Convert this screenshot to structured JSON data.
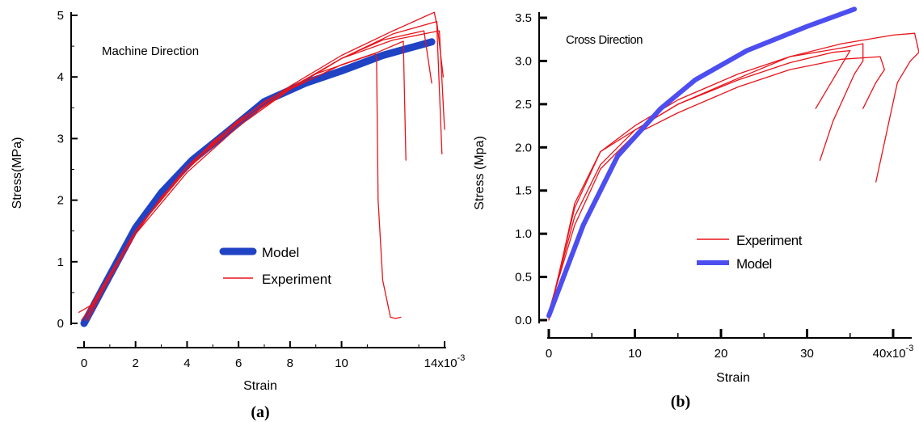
{
  "chart_data": [
    {
      "type": "line",
      "panel_label": "(a)",
      "annotation": "Machine Direction",
      "xlabel": "Strain",
      "ylabel": "Stress(MPa)",
      "xlim": [
        -0.3,
        14
      ],
      "ylim": [
        0,
        5
      ],
      "x_ticks": [
        0,
        2,
        4,
        6,
        8,
        10,
        14
      ],
      "x_tick_labels": [
        "0",
        "2",
        "4",
        "6",
        "8",
        "10",
        "14x10"
      ],
      "x_exponent": "-3",
      "y_ticks": [
        0,
        1,
        2,
        3,
        4,
        5
      ],
      "y_tick_labels": [
        "0",
        "1",
        "2",
        "3",
        "4",
        "5"
      ],
      "legend": [
        "Model",
        "Experiment"
      ],
      "colors": {
        "model": "#1f43c4",
        "experiment": "#e8141b"
      },
      "series": [
        {
          "name": "Model",
          "x": [
            0,
            1,
            2,
            3,
            4.2,
            5.6,
            7,
            8.6,
            10,
            11.6,
            13.5
          ],
          "y": [
            0,
            0.78,
            1.55,
            2.12,
            2.65,
            3.12,
            3.6,
            3.9,
            4.1,
            4.35,
            4.57
          ]
        },
        {
          "name": "Experiment",
          "x": [
            -0.2,
            0.3,
            1.5,
            3,
            5,
            7,
            9,
            10.6,
            11.3,
            11.36,
            11.42,
            11.6,
            11.9,
            12.1,
            12.3
          ],
          "y": [
            0.18,
            0.3,
            1.15,
            2.05,
            2.95,
            3.6,
            4.05,
            4.28,
            4.38,
            4.3,
            2.0,
            0.7,
            0.1,
            0.08,
            0.1
          ]
        },
        {
          "name": "Experiment",
          "x": [
            -0.1,
            0.4,
            2,
            4,
            6,
            8,
            10,
            11.4,
            12.4,
            12.5
          ],
          "y": [
            0.05,
            0.35,
            1.5,
            2.55,
            3.25,
            3.8,
            4.2,
            4.4,
            4.58,
            2.65
          ]
        },
        {
          "name": "Experiment",
          "x": [
            0,
            0.5,
            2,
            4,
            6,
            8,
            10,
            11.6,
            13.2,
            13.5
          ],
          "y": [
            0.1,
            0.45,
            1.5,
            2.55,
            3.25,
            3.82,
            4.3,
            4.6,
            4.75,
            3.9
          ]
        },
        {
          "name": "Experiment",
          "x": [
            0.05,
            0.6,
            2,
            4,
            6,
            8,
            10,
            12,
            13.6,
            13.7,
            13.9
          ],
          "y": [
            0.05,
            0.5,
            1.5,
            2.55,
            3.3,
            3.85,
            4.35,
            4.75,
            5.05,
            4.85,
            2.75
          ]
        },
        {
          "name": "Experiment",
          "x": [
            0.1,
            0.7,
            2,
            4,
            6,
            8,
            10,
            12,
            13.8,
            14
          ],
          "y": [
            0.08,
            0.55,
            1.5,
            2.5,
            3.25,
            3.8,
            4.3,
            4.6,
            4.75,
            3.15
          ]
        },
        {
          "name": "Experiment",
          "x": [
            0.15,
            0.8,
            2,
            4,
            6,
            8,
            10,
            12,
            13.7,
            13.95
          ],
          "y": [
            0.05,
            0.58,
            1.45,
            2.45,
            3.2,
            3.8,
            4.3,
            4.7,
            4.9,
            4.0
          ]
        }
      ]
    },
    {
      "type": "line",
      "panel_label": "(b)",
      "annotation": "Cross Direction",
      "xlabel": "Strain",
      "ylabel": "Stress (Mpa)",
      "xlim": [
        -1,
        43
      ],
      "ylim": [
        -0.1,
        3.6
      ],
      "x_ticks": [
        0,
        10,
        20,
        30,
        40
      ],
      "x_tick_labels": [
        "0",
        "10",
        "20",
        "30",
        "40x10"
      ],
      "x_exponent": "-3",
      "y_ticks": [
        0,
        0.5,
        1,
        1.5,
        2,
        2.5,
        3,
        3.5
      ],
      "y_tick_labels": [
        "0.0",
        "0.5",
        "1.0",
        "1.5",
        "2.0",
        "2.5",
        "3.0",
        "3.5"
      ],
      "legend": [
        "Experiment",
        "Model"
      ],
      "colors": {
        "model": "#4d4ef0",
        "experiment": "#e8141b"
      },
      "series": [
        {
          "name": "Model",
          "x": [
            0,
            4,
            8,
            13,
            17,
            23,
            30,
            35.5
          ],
          "y": [
            0.05,
            1.1,
            1.9,
            2.45,
            2.78,
            3.12,
            3.4,
            3.6
          ],
          "display": "Model"
        },
        {
          "name": "Experiment",
          "x": [
            0,
            3,
            6,
            10,
            15,
            22,
            28,
            33,
            35,
            31
          ],
          "y": [
            0.08,
            1.2,
            1.8,
            2.2,
            2.5,
            2.78,
            2.98,
            3.1,
            3.12,
            2.45
          ]
        },
        {
          "name": "Experiment",
          "x": [
            0,
            3,
            6,
            10,
            15,
            22,
            28,
            34,
            36.5,
            36.5,
            35.5,
            33,
            31.5
          ],
          "y": [
            0.0,
            1.35,
            1.95,
            2.2,
            2.5,
            2.8,
            3.05,
            3.15,
            3.2,
            3.0,
            2.85,
            2.3,
            1.85
          ]
        },
        {
          "name": "Experiment",
          "x": [
            0,
            3,
            6,
            10,
            15,
            22,
            28,
            34,
            38.5,
            39,
            38,
            36.5
          ],
          "y": [
            0.1,
            1.1,
            1.75,
            2.15,
            2.4,
            2.7,
            2.9,
            3.02,
            3.05,
            2.9,
            2.75,
            2.45
          ]
        },
        {
          "name": "Experiment",
          "x": [
            0,
            3,
            6,
            10,
            15,
            22,
            28,
            34,
            40,
            42.5,
            43,
            42,
            40.5,
            38
          ],
          "y": [
            0.05,
            1.3,
            1.95,
            2.25,
            2.55,
            2.85,
            3.05,
            3.2,
            3.3,
            3.32,
            3.1,
            3.0,
            2.75,
            1.6
          ]
        }
      ]
    }
  ]
}
